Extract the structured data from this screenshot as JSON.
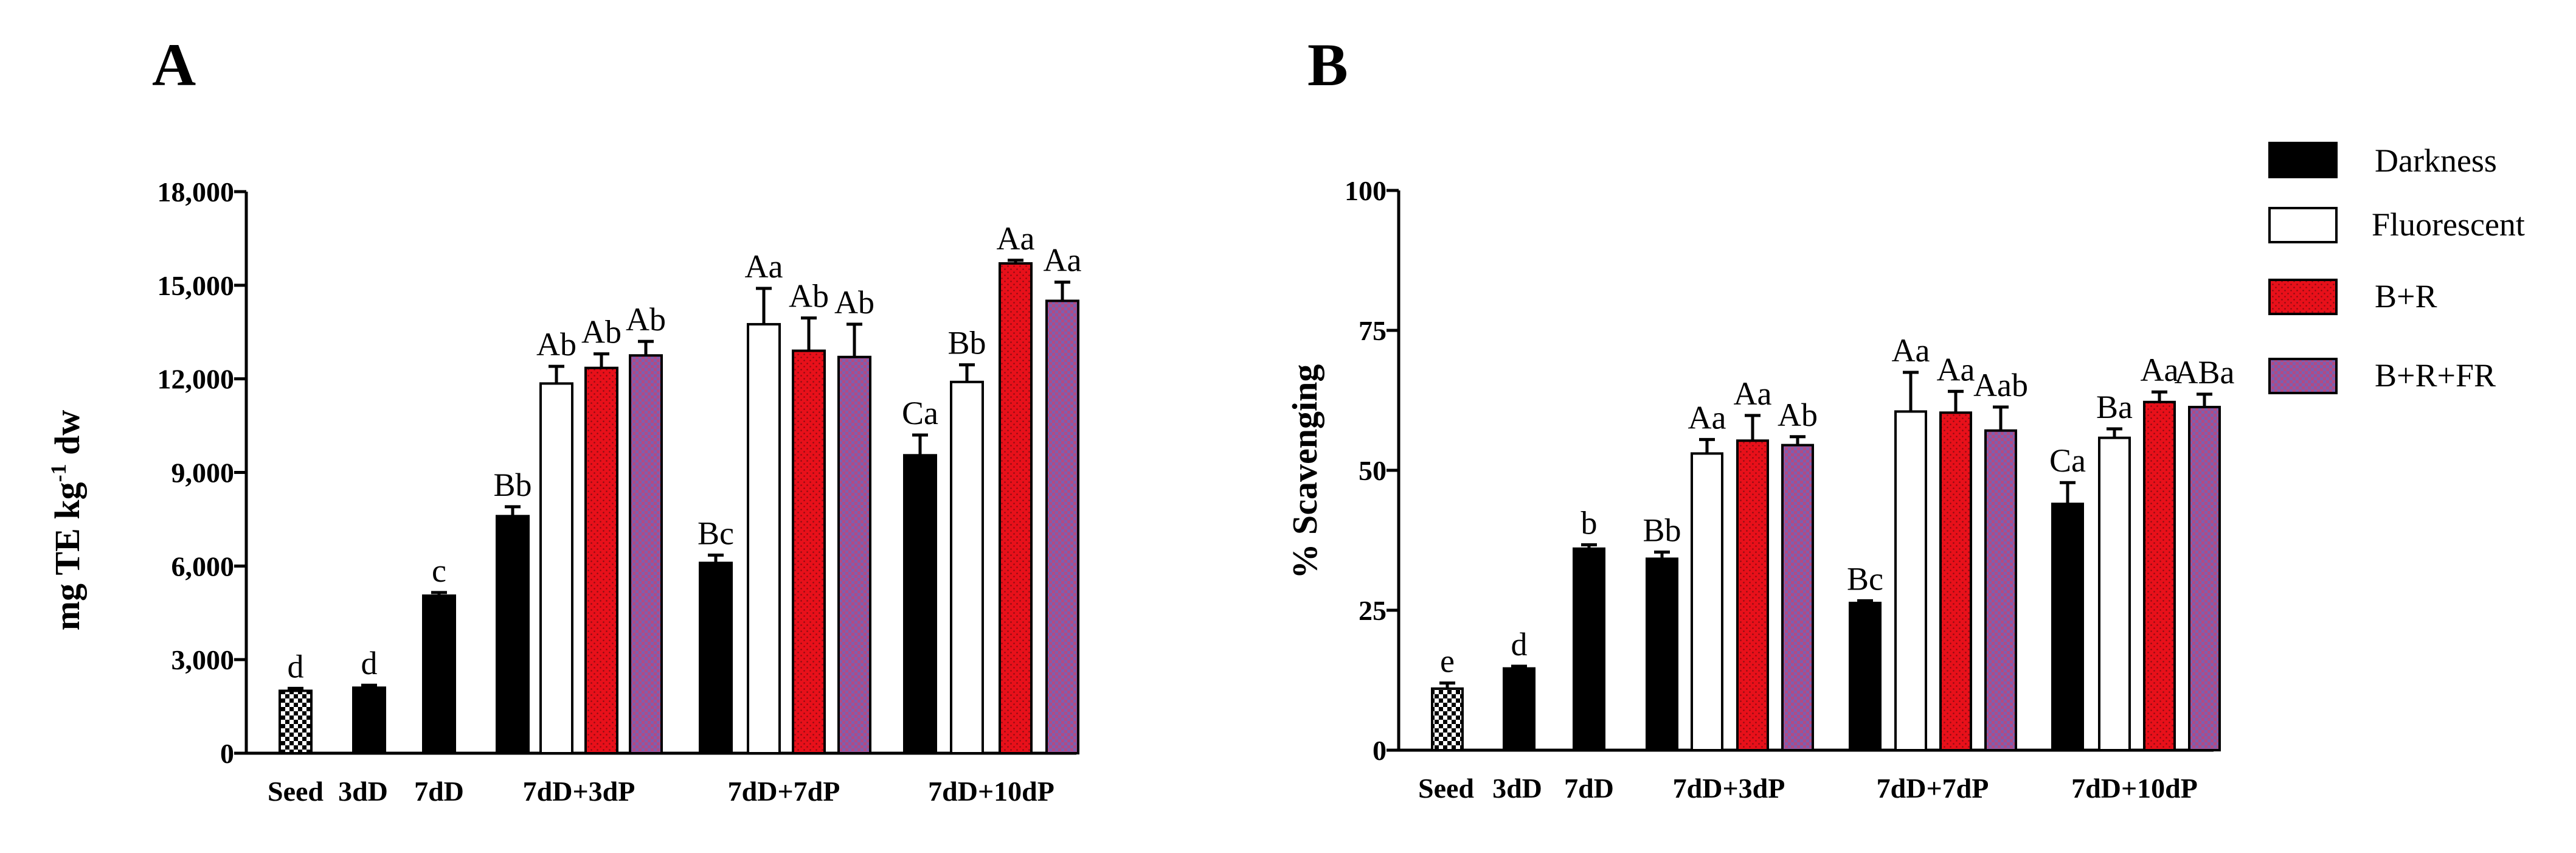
{
  "colors": {
    "darkness": "#000000",
    "fluorescent": "#ffffff",
    "br": "#e8101a",
    "brfr": "#8a55a8"
  },
  "legend": {
    "darkness": "Darkness",
    "fluorescent": "Fluorescent",
    "br": "B+R",
    "brfr": "B+R+FR"
  },
  "chart_data": [
    {
      "type": "bar",
      "panel": "A",
      "title": "",
      "xlabel": "",
      "ylabel_main": "mg TE kg",
      "ylabel_sup": "-1",
      "ylabel_tail": " dw",
      "ylim": [
        0,
        18000
      ],
      "yticks": [
        "0",
        "3,000",
        "6,000",
        "9,000",
        "12,000",
        "15,000",
        "18,000"
      ],
      "categories": [
        "Seed",
        "3dD",
        "7dD",
        "7dD+3dP",
        "7dD+7dP",
        "7dD+10dP"
      ],
      "groups": [
        {
          "bars": [
            {
              "treatment": "seed",
              "value": 2000,
              "err": 80,
              "label": "d"
            }
          ]
        },
        {
          "bars": [
            {
              "treatment": "darkness",
              "value": 2100,
              "err": 80,
              "label": "d"
            }
          ]
        },
        {
          "bars": [
            {
              "treatment": "darkness",
              "value": 5050,
              "err": 100,
              "label": "c"
            }
          ]
        },
        {
          "bars": [
            {
              "treatment": "darkness",
              "value": 7600,
              "err": 300,
              "label": "Bb"
            },
            {
              "treatment": "fluorescent",
              "value": 11850,
              "err": 550,
              "label": "Ab"
            },
            {
              "treatment": "br",
              "value": 12350,
              "err": 450,
              "label": "Ab"
            },
            {
              "treatment": "brfr",
              "value": 12750,
              "err": 450,
              "label": "Ab"
            }
          ]
        },
        {
          "bars": [
            {
              "treatment": "darkness",
              "value": 6100,
              "err": 250,
              "label": "Bc"
            },
            {
              "treatment": "fluorescent",
              "value": 13750,
              "err": 1150,
              "label": "Aa"
            },
            {
              "treatment": "br",
              "value": 12900,
              "err": 1050,
              "label": "Ab"
            },
            {
              "treatment": "brfr",
              "value": 12700,
              "err": 1050,
              "label": "Ab"
            }
          ]
        },
        {
          "bars": [
            {
              "treatment": "darkness",
              "value": 9550,
              "err": 650,
              "label": "Ca"
            },
            {
              "treatment": "fluorescent",
              "value": 11900,
              "err": 550,
              "label": "Bb"
            },
            {
              "treatment": "br",
              "value": 15700,
              "err": 100,
              "label": "Aa"
            },
            {
              "treatment": "brfr",
              "value": 14500,
              "err": 600,
              "label": "Aa"
            }
          ]
        }
      ]
    },
    {
      "type": "bar",
      "panel": "B",
      "title": "",
      "xlabel": "",
      "ylabel_main": "% Scavenging",
      "ylim": [
        0,
        100
      ],
      "yticks": [
        "0",
        "25",
        "50",
        "75",
        "100"
      ],
      "categories": [
        "Seed",
        "3dD",
        "7dD",
        "7dD+3dP",
        "7dD+7dP",
        "7dD+10dP"
      ],
      "groups": [
        {
          "bars": [
            {
              "treatment": "seed",
              "value": 11,
              "err": 1,
              "label": "e"
            }
          ]
        },
        {
          "bars": [
            {
              "treatment": "darkness",
              "value": 14.6,
              "err": 0.4,
              "label": "d"
            }
          ]
        },
        {
          "bars": [
            {
              "treatment": "darkness",
              "value": 36,
              "err": 0.7,
              "label": "b"
            }
          ]
        },
        {
          "bars": [
            {
              "treatment": "darkness",
              "value": 34.2,
              "err": 1.2,
              "label": "Bb"
            },
            {
              "treatment": "fluorescent",
              "value": 53,
              "err": 2.5,
              "label": "Aa"
            },
            {
              "treatment": "br",
              "value": 55.3,
              "err": 4.5,
              "label": "Aa"
            },
            {
              "treatment": "brfr",
              "value": 54.5,
              "err": 1.5,
              "label": "Ab"
            }
          ]
        },
        {
          "bars": [
            {
              "treatment": "darkness",
              "value": 26.3,
              "err": 0.4,
              "label": "Bc"
            },
            {
              "treatment": "fluorescent",
              "value": 60.5,
              "err": 7,
              "label": "Aa"
            },
            {
              "treatment": "br",
              "value": 60.3,
              "err": 3.8,
              "label": "Aa"
            },
            {
              "treatment": "brfr",
              "value": 57.1,
              "err": 4.2,
              "label": "Aab"
            }
          ]
        },
        {
          "bars": [
            {
              "treatment": "darkness",
              "value": 44,
              "err": 3.8,
              "label": "Ca"
            },
            {
              "treatment": "fluorescent",
              "value": 55.8,
              "err": 1.6,
              "label": "Ba"
            },
            {
              "treatment": "br",
              "value": 62.2,
              "err": 1.8,
              "label": "Aa"
            },
            {
              "treatment": "brfr",
              "value": 61.3,
              "err": 2.3,
              "label": "ABa"
            }
          ]
        }
      ]
    }
  ]
}
